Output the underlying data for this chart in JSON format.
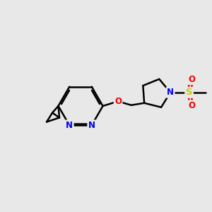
{
  "bg_color": "#e8e8e8",
  "bond_color": "#000000",
  "bond_width": 1.8,
  "atom_colors": {
    "N": "#0000ee",
    "O": "#ee0000",
    "S": "#cccc00",
    "C": "#000000"
  },
  "font_size": 8.5,
  "fig_width": 3.0,
  "fig_height": 3.0,
  "dpi": 100
}
